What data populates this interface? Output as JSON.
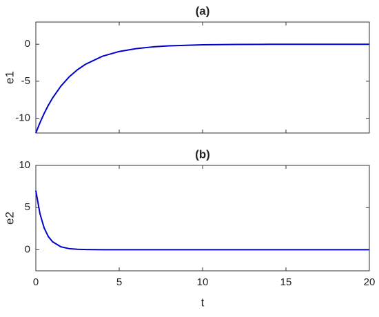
{
  "chart_data": [
    {
      "type": "line",
      "title": "(a)",
      "ylabel": "e1",
      "x": [
        0,
        0.25,
        0.5,
        0.75,
        1,
        1.5,
        2,
        2.5,
        3,
        4,
        5,
        6,
        7,
        8,
        10,
        12,
        14,
        16,
        18,
        20
      ],
      "series": [
        {
          "name": "e1",
          "color": "#0000cc",
          "values": [
            -12,
            -10.59,
            -9.35,
            -8.25,
            -7.28,
            -5.67,
            -4.41,
            -3.44,
            -2.68,
            -1.62,
            -0.98,
            -0.6,
            -0.36,
            -0.22,
            -0.08,
            -0.03,
            -0.01,
            0,
            0,
            0
          ]
        }
      ],
      "xlim": [
        0,
        20
      ],
      "xticks": [
        0,
        5,
        10,
        15,
        20
      ],
      "ylim": [
        -12,
        3
      ],
      "yticks": [
        -10,
        -5,
        0
      ]
    },
    {
      "type": "line",
      "title": "(b)",
      "ylabel": "e2",
      "xlabel": "t",
      "x": [
        0,
        0.25,
        0.5,
        0.75,
        1,
        1.5,
        2,
        2.5,
        3,
        4,
        5,
        6,
        7,
        8,
        10,
        12,
        14,
        16,
        18,
        20
      ],
      "series": [
        {
          "name": "e2",
          "color": "#0000cc",
          "values": [
            7,
            4.25,
            2.58,
            1.56,
            0.95,
            0.35,
            0.13,
            0.05,
            0.02,
            0,
            0,
            0,
            0,
            0,
            0,
            0,
            0,
            0,
            0,
            0
          ]
        }
      ],
      "xlim": [
        0,
        20
      ],
      "xticks": [
        0,
        5,
        10,
        15,
        20
      ],
      "ylim": [
        -2.5,
        10
      ],
      "yticks": [
        0,
        5,
        10
      ]
    }
  ]
}
